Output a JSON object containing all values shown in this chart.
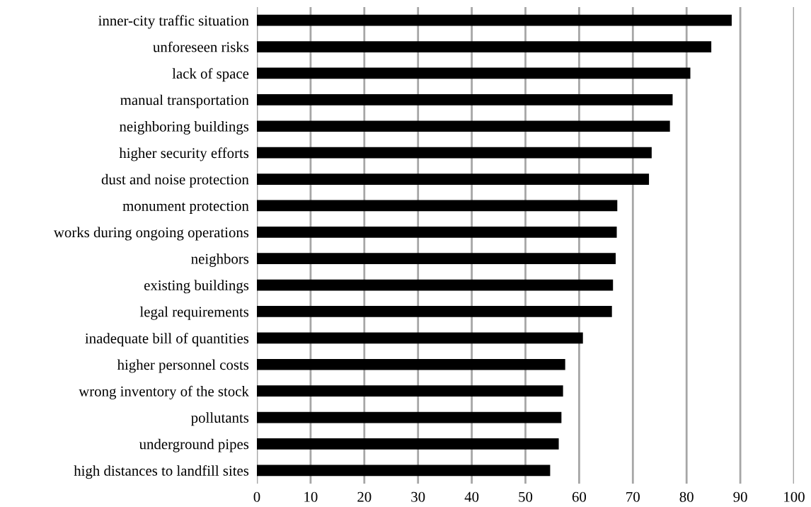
{
  "chart_data": {
    "type": "bar",
    "orientation": "horizontal",
    "categories": [
      "inner-city traffic situation",
      "unforeseen risks",
      "lack of space",
      "manual transportation",
      "neighboring buildings",
      "higher security efforts",
      "dust and noise protection",
      "monument protection",
      "works during ongoing operations",
      "neighbors",
      "existing buildings",
      "legal requirements",
      "inadequate bill of quantities",
      "higher personnel costs",
      "wrong inventory of the stock",
      "pollutants",
      "underground pipes",
      "high distances to landfill sites"
    ],
    "values": [
      88.4,
      84.6,
      80.7,
      77.4,
      76.9,
      73.5,
      73.0,
      67.1,
      67.0,
      66.8,
      66.3,
      66.1,
      60.7,
      57.4,
      57.0,
      56.7,
      56.2,
      54.6
    ],
    "color": "#000000",
    "xlim": [
      0,
      100
    ],
    "xticks": [
      0,
      10,
      20,
      30,
      40,
      50,
      60,
      70,
      80,
      90,
      100
    ],
    "grid": "x",
    "legend": false
  }
}
